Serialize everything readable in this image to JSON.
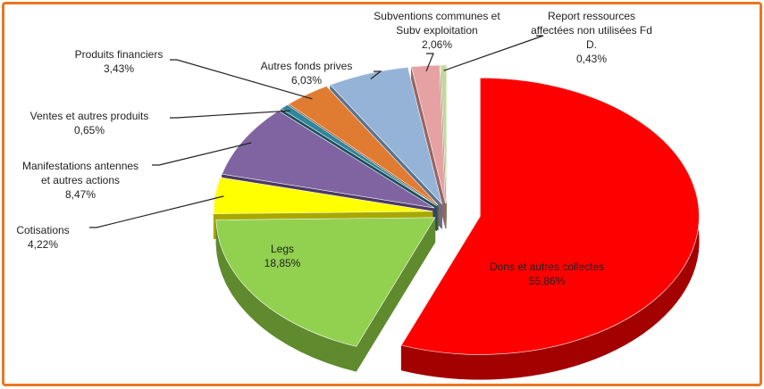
{
  "chart_data": {
    "type": "pie",
    "title": "",
    "legend": "none",
    "border_color": "#e87722",
    "slices": [
      {
        "label_lines": [
          "Dons et autres collectes"
        ],
        "value": 55.86,
        "value_text": "55,86%",
        "color": "#ff0000",
        "side_color": "#a30000"
      },
      {
        "label_lines": [
          "Legs"
        ],
        "value": 18.85,
        "value_text": "18,85%",
        "color": "#92d050",
        "side_color": "#5f8a2e"
      },
      {
        "label_lines": [
          "Cotisations"
        ],
        "value": 4.22,
        "value_text": "4,22%",
        "color": "#ffff00",
        "side_color": "#a8a800"
      },
      {
        "label_lines": [
          "Manifestations antennes",
          "et autres actions"
        ],
        "value": 8.47,
        "value_text": "8,47%",
        "color": "#8064a2",
        "side_color": "#4b3a63"
      },
      {
        "label_lines": [
          "Ventes et autres produits"
        ],
        "value": 0.65,
        "value_text": "0,65%",
        "color": "#31859c",
        "side_color": "#1c4f5d"
      },
      {
        "label_lines": [
          "Produits financiers"
        ],
        "value": 3.43,
        "value_text": "3,43%",
        "color": "#e07b32",
        "side_color": "#8e4a1b"
      },
      {
        "label_lines": [
          "Autres fonds prives"
        ],
        "value": 6.03,
        "value_text": "6,03%",
        "color": "#95b3d7",
        "side_color": "#5b718c"
      },
      {
        "label_lines": [
          "Subventions communes et",
          "Subv exploitation"
        ],
        "value": 2.06,
        "value_text": "2,06%",
        "color": "#e6a2a2",
        "side_color": "#986464"
      },
      {
        "label_lines": [
          "Report ressources",
          "affectées non utilisées Fd",
          "D."
        ],
        "value": 0.43,
        "value_text": "0,43%",
        "color": "#c4d79b",
        "side_color": "#7c8a5f"
      }
    ]
  }
}
